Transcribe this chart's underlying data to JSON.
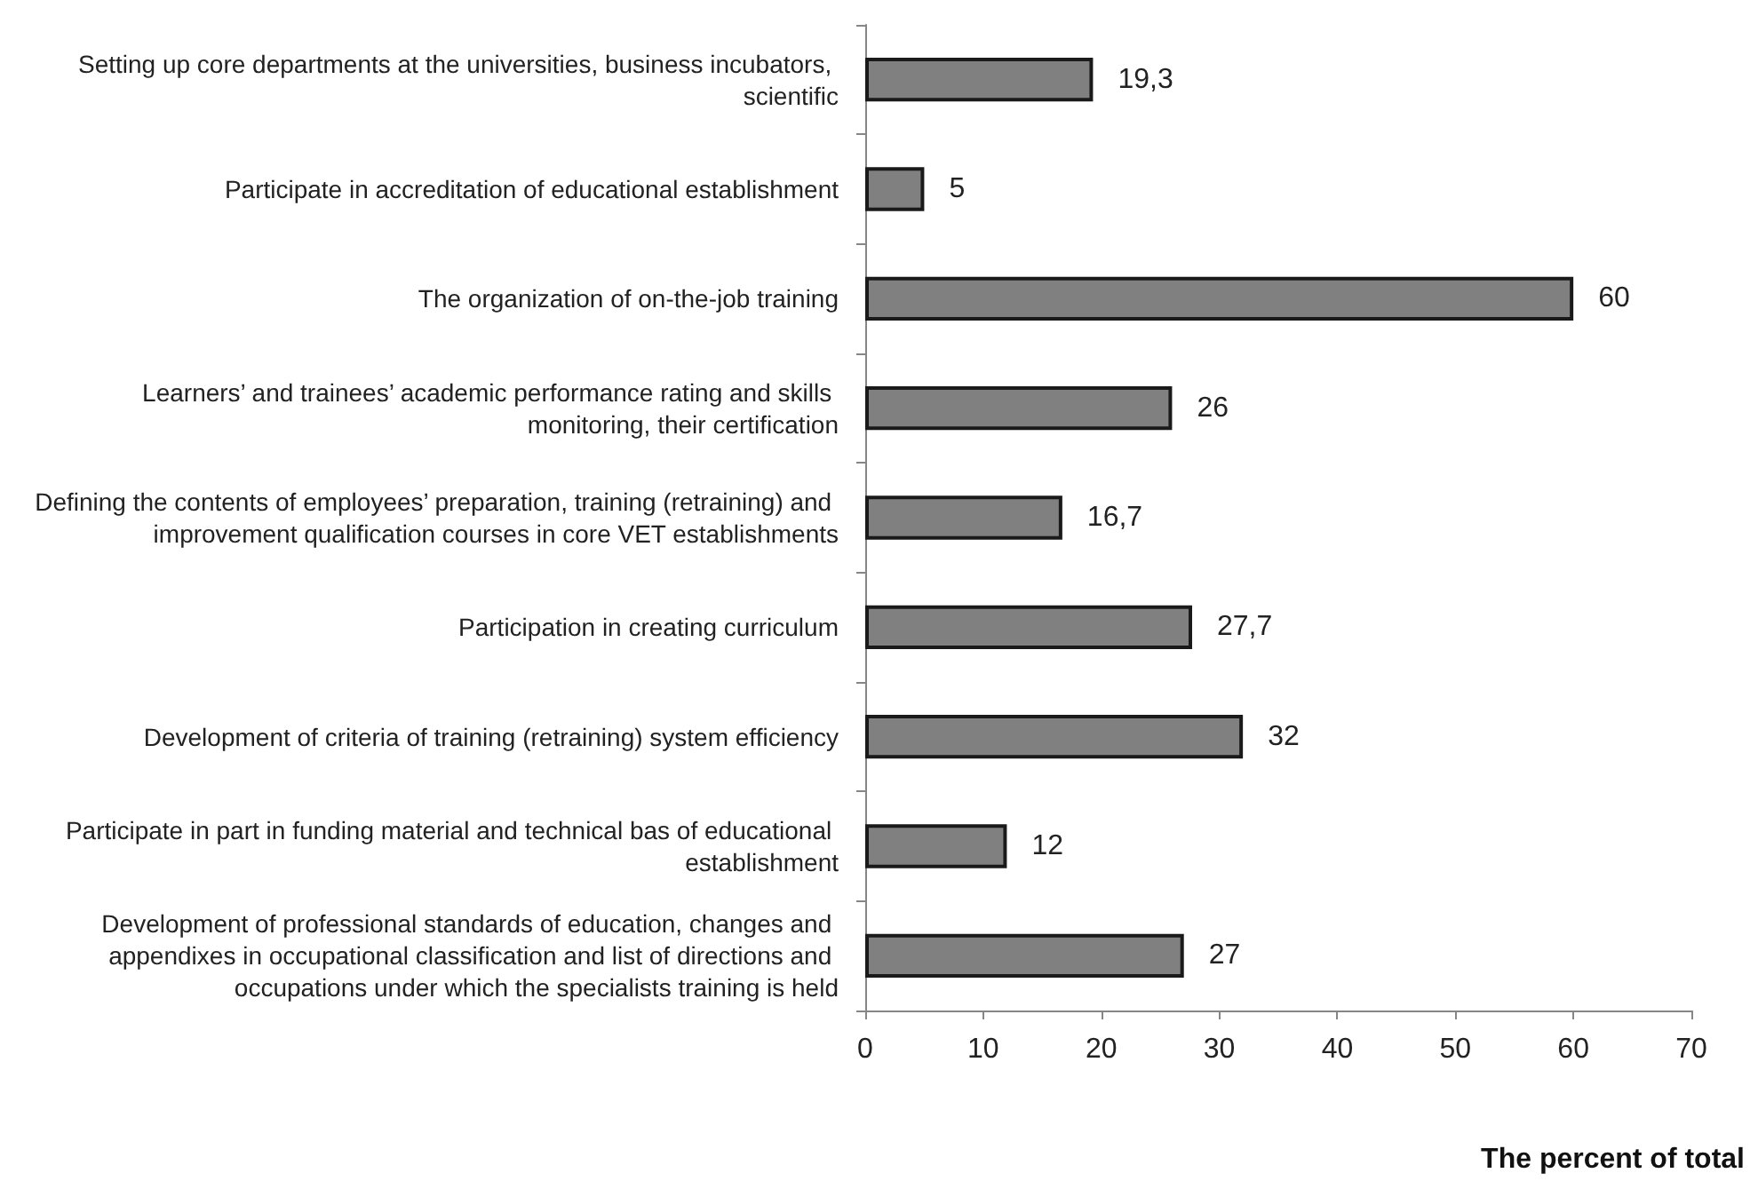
{
  "chart_data": {
    "type": "bar",
    "orientation": "horizontal",
    "xlabel": "The percent of total",
    "categories": [
      "Setting up core departments at the universities, business incubators, scientific",
      "Participate in accreditation of educational establishment",
      "The organization of on-the-job training",
      "Learners’ and trainees’ academic performance rating and skills monitoring, their certification",
      "Defining the contents of employees’ preparation, training (retraining) and improvement qualification courses in core VET establishments",
      "Participation in creating curriculum",
      "Development of criteria of training (retraining) system efficiency",
      "Participate in part in funding material and technical bas of educational establishment",
      "Development of professional standards of education, changes and appendixes in occupational classification and list of directions and occupations under which the specialists training is held"
    ],
    "values": [
      19.3,
      5,
      60,
      26,
      16.7,
      27.7,
      32,
      12,
      27
    ],
    "value_labels": [
      "19,3",
      "5",
      "60",
      "26",
      "16,7",
      "27,7",
      "32",
      "12",
      "27"
    ],
    "color": "#808080",
    "xlim": [
      0,
      70
    ],
    "xticks": [
      0,
      10,
      20,
      30,
      40,
      50,
      60,
      70
    ]
  }
}
